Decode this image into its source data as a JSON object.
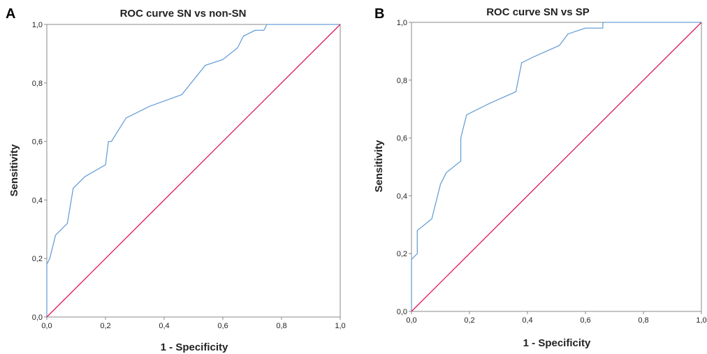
{
  "chart_data": [
    {
      "panel": "A",
      "type": "line",
      "title": "ROC curve SN vs non-SN",
      "xlabel": "1 - Specificity",
      "ylabel": "Sensitivity",
      "xlim": [
        0,
        1
      ],
      "ylim": [
        0,
        1
      ],
      "xticks": [
        "0,0",
        "0,2",
        "0,4",
        "0,6",
        "0,8",
        "1,0"
      ],
      "yticks": [
        "0,0",
        "0,2",
        "0,4",
        "0,6",
        "0,8",
        "1,0"
      ],
      "grid": false,
      "series": [
        {
          "color": "#6a9fd8",
          "points": [
            [
              0,
              0
            ],
            [
              0,
              0.18
            ],
            [
              0.01,
              0.2
            ],
            [
              0.03,
              0.28
            ],
            [
              0.07,
              0.32
            ],
            [
              0.09,
              0.44
            ],
            [
              0.13,
              0.48
            ],
            [
              0.2,
              0.52
            ],
            [
              0.21,
              0.6
            ],
            [
              0.22,
              0.6
            ],
            [
              0.27,
              0.68
            ],
            [
              0.35,
              0.72
            ],
            [
              0.46,
              0.76
            ],
            [
              0.54,
              0.86
            ],
            [
              0.6,
              0.88
            ],
            [
              0.65,
              0.92
            ],
            [
              0.67,
              0.96
            ],
            [
              0.71,
              0.98
            ],
            [
              0.74,
              0.98
            ],
            [
              0.75,
              1.0
            ],
            [
              1.0,
              1.0
            ]
          ]
        },
        {
          "color": "#e0185a",
          "points": [
            [
              0,
              0
            ],
            [
              1,
              1
            ]
          ]
        }
      ]
    },
    {
      "panel": "B",
      "type": "line",
      "title": "ROC curve  SN vs SP",
      "xlabel": "1 - Specificity",
      "ylabel": "Sensitivity",
      "xlim": [
        0,
        1
      ],
      "ylim": [
        0,
        1
      ],
      "xticks": [
        "0,0",
        "0,2",
        "0,4",
        "0,6",
        "0,8",
        "1,0"
      ],
      "yticks": [
        "0,0",
        "0,2",
        "0,4",
        "0,6",
        "0,8",
        "1,0"
      ],
      "grid": false,
      "series": [
        {
          "color": "#6a9fd8",
          "points": [
            [
              0,
              0
            ],
            [
              0,
              0.18
            ],
            [
              0.02,
              0.2
            ],
            [
              0.02,
              0.28
            ],
            [
              0.07,
              0.32
            ],
            [
              0.1,
              0.44
            ],
            [
              0.12,
              0.48
            ],
            [
              0.17,
              0.52
            ],
            [
              0.17,
              0.6
            ],
            [
              0.19,
              0.68
            ],
            [
              0.27,
              0.72
            ],
            [
              0.36,
              0.76
            ],
            [
              0.38,
              0.86
            ],
            [
              0.42,
              0.88
            ],
            [
              0.51,
              0.92
            ],
            [
              0.54,
              0.96
            ],
            [
              0.6,
              0.98
            ],
            [
              0.66,
              0.98
            ],
            [
              0.66,
              1.0
            ],
            [
              1.0,
              1.0
            ]
          ]
        },
        {
          "color": "#e0185a",
          "points": [
            [
              0,
              0
            ],
            [
              1,
              1
            ]
          ]
        }
      ]
    }
  ]
}
